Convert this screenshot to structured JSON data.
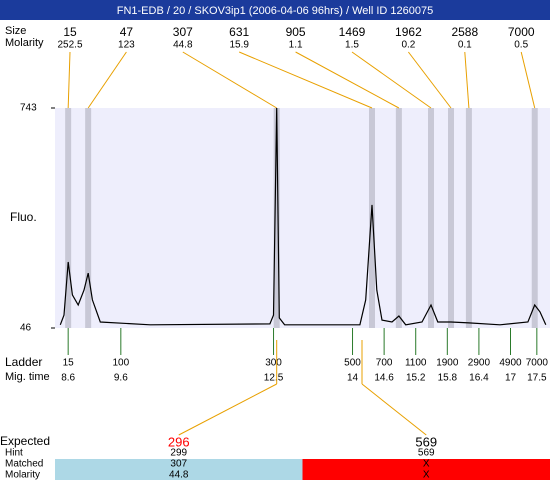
{
  "chart_data": {
    "type": "electropherogram",
    "title": "FN1-EDB / 20 / SKOV3ip1 (2006-04-06 96hrs) / Well ID 1260075",
    "peak_size_label": "Size",
    "peak_molarity_label": "Molarity",
    "peaks": [
      {
        "size": 15,
        "molarity": 252.5,
        "time": 8.6
      },
      {
        "size": 47,
        "molarity": 123,
        "time": 8.98
      },
      {
        "size": 307,
        "molarity": 44.8,
        "time": 12.56
      },
      {
        "size": 631,
        "molarity": 15.9,
        "time": 14.37
      },
      {
        "size": 905,
        "molarity": 1.1,
        "time": 14.88
      },
      {
        "size": 1469,
        "molarity": 1.5,
        "time": 15.49
      },
      {
        "size": 1962,
        "molarity": 0.2,
        "time": 15.87
      },
      {
        "size": 2588,
        "molarity": 0.1,
        "time": 16.21
      },
      {
        "size": 7000,
        "molarity": 0.5,
        "time": 17.46
      }
    ],
    "y_label": "Fluo.",
    "ylim": [
      46,
      743
    ],
    "yticks": [
      46,
      743
    ],
    "xlim": [
      8.35,
      17.75
    ],
    "trace": {
      "color": "#000000",
      "x": [
        8.45,
        8.52,
        8.6,
        8.68,
        8.79,
        8.9,
        8.98,
        9.06,
        9.21,
        10.16,
        12.43,
        12.5,
        12.56,
        12.61,
        12.71,
        14.14,
        14.25,
        14.37,
        14.46,
        14.56,
        14.75,
        14.88,
        15.01,
        15.32,
        15.49,
        15.62,
        15.87,
        16.21,
        16.8,
        17.33,
        17.46,
        17.56,
        17.67
      ],
      "values": [
        56,
        87,
        255,
        151,
        119,
        166,
        220,
        135,
        65,
        56,
        59,
        87,
        743,
        78,
        56,
        56,
        135,
        436,
        166,
        71,
        65,
        84,
        56,
        65,
        119,
        65,
        65,
        62,
        56,
        65,
        119,
        97,
        56
      ]
    },
    "band_color": "#c8c8d6",
    "ladder_label": "Ladder",
    "time_label": "Mig. time",
    "ladder": {
      "sizes": [
        15,
        100,
        300,
        500,
        700,
        1100,
        1900,
        2900,
        4900,
        7000
      ],
      "times": [
        8.6,
        9.6,
        12.5,
        14,
        14.6,
        15.2,
        15.8,
        16.4,
        17,
        17.5
      ]
    },
    "expected_label": "Expected",
    "hint_label": "Hint",
    "matched_label": "Matched",
    "molarity_label": "Molarity",
    "expected": [
      {
        "expected": 296,
        "hint": 299,
        "matched": 307,
        "molarity": 44.8,
        "time": 12.56,
        "color": "#ff0000",
        "background": "#add8e6"
      },
      {
        "expected": 569,
        "hint": 569,
        "matched": "X",
        "molarity": "X",
        "time": 14.18,
        "color": "#000000",
        "background": "#ff0000"
      }
    ]
  }
}
